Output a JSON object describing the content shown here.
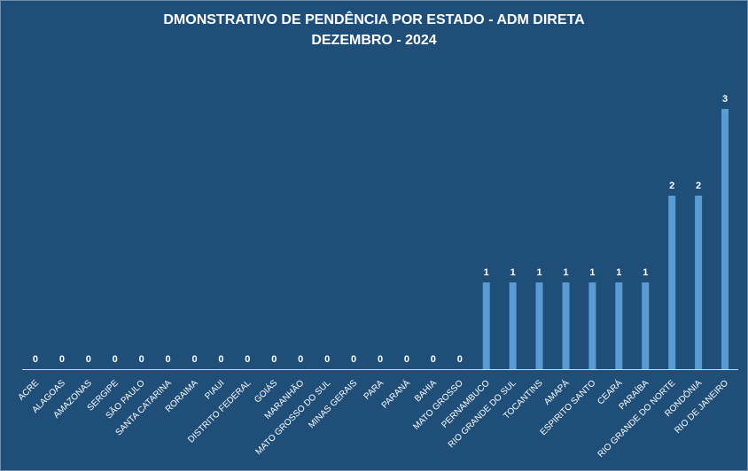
{
  "chart_data": {
    "type": "bar",
    "title": "DMONSTRATIVO DE PENDÊNCIA POR ESTADO - ADM DIRETA",
    "subtitle": "DEZEMBRO - 2024",
    "xlabel": "",
    "ylabel": "",
    "categories": [
      "ACRE",
      "ALAGOAS",
      "AMAZONAS",
      "SERGIPE",
      "SÃO PAULO",
      "SANTA CATARINA",
      "RORAIMA",
      "PIAUI",
      "DISTRITO FEDERAL",
      "GOIÁS",
      "MARANHÃO",
      "MATO GROSSO DO SUL",
      "MINAS GERAIS",
      "PARA",
      "PARANÁ",
      "BAHIA",
      "MATO GROSSO",
      "PERNAMBUCO",
      "RIO GRANDE DO SUL",
      "TOCANTINS",
      "AMAPÁ",
      "ESPIRITO SANTO",
      "CEARÁ",
      "PARAÍBA",
      "RIO GRANDE DO NORTE",
      "RONDÔNIA",
      "RIO DE JANEIRO"
    ],
    "values": [
      0,
      0,
      0,
      0,
      0,
      0,
      0,
      0,
      0,
      0,
      0,
      0,
      0,
      0,
      0,
      0,
      0,
      1,
      1,
      1,
      1,
      1,
      1,
      1,
      2,
      2,
      3
    ],
    "ylim": [
      0,
      3
    ],
    "grid": false,
    "legend": "none",
    "data_labels": true
  },
  "colors": {
    "background": "#1f4e79",
    "bar": "#5b9bd5",
    "axis": "#d9d9d9",
    "text": "#ffffff"
  }
}
